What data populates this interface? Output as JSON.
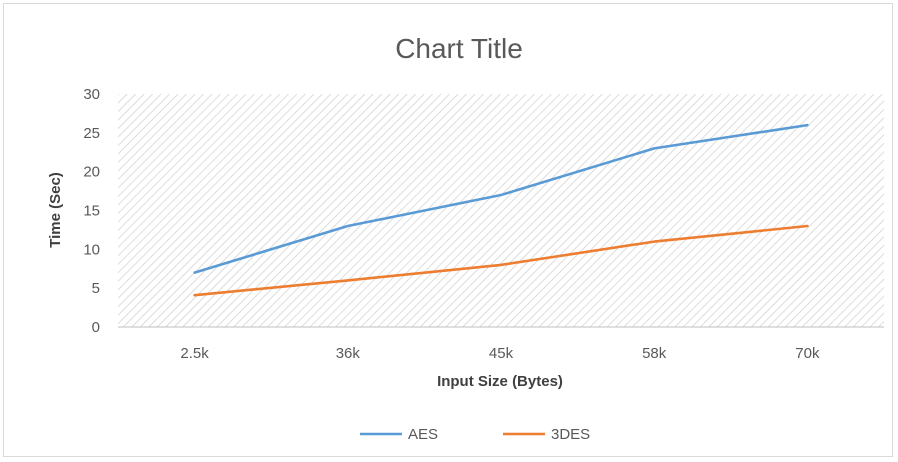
{
  "chart_data": {
    "type": "line",
    "title": "Chart Title",
    "xlabel": "Input Size (Bytes)",
    "ylabel": "Time (Sec)",
    "categories": [
      "2.5k",
      "36k",
      "45k",
      "58k",
      "70k"
    ],
    "ylim": [
      0,
      30
    ],
    "yticks": [
      0,
      5,
      10,
      15,
      20,
      25,
      30
    ],
    "grid": true,
    "legend": "bottom",
    "series": [
      {
        "name": "AES",
        "values": [
          7,
          13,
          17,
          23,
          26
        ],
        "color": "#5b9bd5"
      },
      {
        "name": "3DES",
        "values": [
          4.1,
          6,
          8,
          11,
          13
        ],
        "color": "#ed7d31"
      }
    ]
  }
}
